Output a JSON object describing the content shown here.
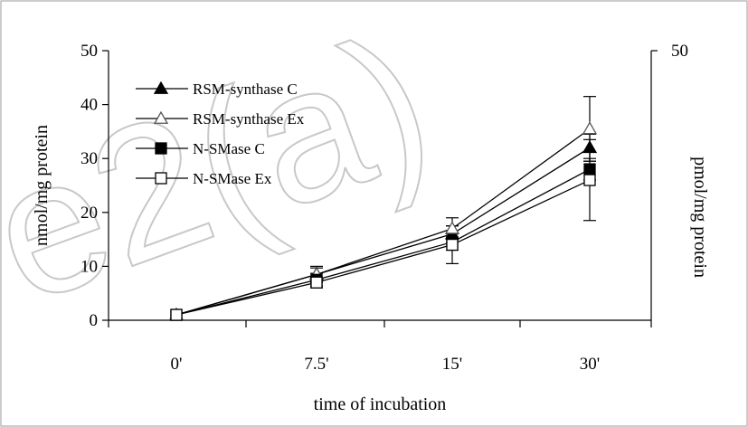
{
  "watermark_text": "e2(a)",
  "chart_data": {
    "type": "line",
    "categories": [
      "0'",
      "7.5'",
      "15'",
      "30'"
    ],
    "xlabel": "time of incubation",
    "ylabel": "nmol/mg protein",
    "ylabel_right": "pmol/mg protein",
    "ylim": [
      0,
      50
    ],
    "y_ticks": [
      0,
      10,
      20,
      30,
      40,
      50
    ],
    "y_ticks_right": [
      50
    ],
    "grid": false,
    "legend_position": "top-left",
    "series": [
      {
        "name": "RSM-synthase C",
        "marker": "triangle-filled",
        "values": [
          1,
          8.5,
          16,
          32
        ],
        "errors": [
          0,
          1.2,
          1.5,
          2.5
        ]
      },
      {
        "name": "RSM-synthase Ex",
        "marker": "triangle-open",
        "values": [
          1,
          8.5,
          17,
          35.5
        ],
        "errors": [
          0,
          1.5,
          2,
          6
        ]
      },
      {
        "name": "N-SMase C",
        "marker": "square-filled",
        "values": [
          1,
          7.5,
          14.5,
          28
        ],
        "errors": [
          0,
          1.2,
          1.5,
          2
        ]
      },
      {
        "name": "N-SMase Ex",
        "marker": "square-open",
        "values": [
          1,
          7,
          14,
          26
        ],
        "errors": [
          0,
          1,
          3.5,
          7.5
        ]
      }
    ]
  }
}
